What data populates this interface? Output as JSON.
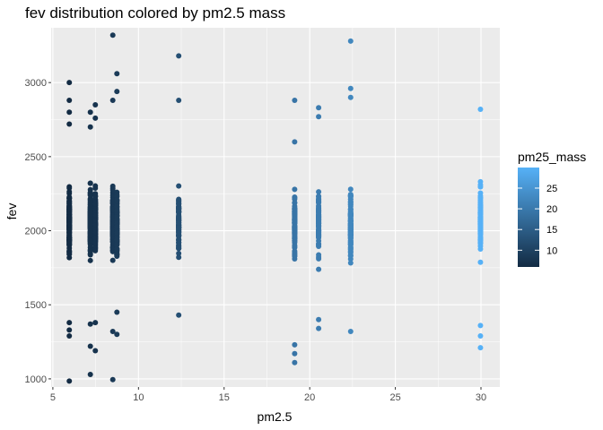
{
  "chart_data": {
    "type": "scatter",
    "title": "fev distribution colored by pm2.5 mass",
    "xlabel": "pm2.5",
    "ylabel": "fev",
    "xlim": [
      4.9,
      31.1
    ],
    "ylim": [
      945,
      3370
    ],
    "xticks": [
      5,
      10,
      15,
      20,
      25,
      30
    ],
    "yticks": [
      1000,
      1500,
      2000,
      2500,
      3000
    ],
    "grid": true,
    "legend": {
      "title": "pm25_mass",
      "position": "right",
      "breaks": [
        10,
        15,
        20,
        25
      ],
      "range": [
        5.96,
        29.97
      ],
      "low_color": "#132B43",
      "high_color": "#56B1F7"
    },
    "groups": [
      {
        "x": 5.96,
        "min": 985,
        "max": 3000,
        "n": 150,
        "outliers": [
          985,
          1290,
          1330,
          1380,
          2720,
          2800,
          2880,
          3000
        ]
      },
      {
        "x": 7.19,
        "min": 1030,
        "max": 2800,
        "n": 160,
        "outliers": [
          1030,
          1220,
          1370,
          2700,
          2800
        ]
      },
      {
        "x": 7.48,
        "min": 1190,
        "max": 2850,
        "n": 180,
        "outliers": [
          1190,
          1380,
          2760,
          2850
        ]
      },
      {
        "x": 8.5,
        "min": 995,
        "max": 3320,
        "n": 140,
        "outliers": [
          995,
          1320,
          2880,
          3320
        ]
      },
      {
        "x": 8.74,
        "min": 1300,
        "max": 3060,
        "n": 120,
        "outliers": [
          1300,
          1450,
          2940,
          3060
        ]
      },
      {
        "x": 12.35,
        "min": 1430,
        "max": 3180,
        "n": 100,
        "outliers": [
          1430,
          2880,
          3180
        ]
      },
      {
        "x": 19.12,
        "min": 1110,
        "max": 2880,
        "n": 100,
        "outliers": [
          1110,
          1170,
          1230,
          2600,
          2880
        ]
      },
      {
        "x": 20.52,
        "min": 1340,
        "max": 2830,
        "n": 100,
        "outliers": [
          1340,
          1400,
          2770,
          2830
        ]
      },
      {
        "x": 22.39,
        "min": 1320,
        "max": 3280,
        "n": 130,
        "outliers": [
          1320,
          2900,
          2960,
          3280
        ]
      },
      {
        "x": 29.97,
        "min": 1210,
        "max": 2820,
        "n": 110,
        "outliers": [
          1210,
          1290,
          1360,
          2820
        ]
      }
    ]
  }
}
